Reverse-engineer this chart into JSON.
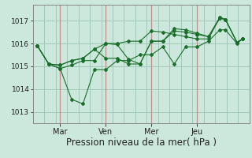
{
  "bg_color": "#cce8dc",
  "grid_color": "#a0c8b8",
  "line_color": "#1a6e2a",
  "marker_color": "#1a6e2a",
  "xlabel": "Pression niveau de la mer( hPa )",
  "xlabel_fontsize": 8.5,
  "ylim": [
    1012.5,
    1017.7
  ],
  "yticks": [
    1013,
    1014,
    1015,
    1016,
    1017
  ],
  "xtick_labels": [
    "Mar",
    "Ven",
    "Mer",
    "Jeu"
  ],
  "xtick_positions": [
    1.0,
    3.0,
    5.0,
    7.0
  ],
  "series": [
    [
      1015.9,
      1015.1,
      1014.9,
      1015.05,
      1015.25,
      1015.25,
      1016.0,
      1015.95,
      1015.3,
      1015.1,
      1016.1,
      1016.1,
      1016.65,
      1016.6,
      1016.45,
      1016.3,
      1017.1,
      1017.05,
      1016.05,
      1016.2
    ],
    [
      1015.9,
      1015.1,
      1014.9,
      1013.55,
      1013.35,
      1014.85,
      1014.85,
      1015.25,
      1015.25,
      1015.5,
      1015.5,
      1015.85,
      1015.1,
      1015.85,
      1015.85,
      1016.1,
      1016.6,
      1016.6,
      1016.0,
      1016.2
    ],
    [
      1015.9,
      1015.1,
      1015.05,
      1015.25,
      1015.35,
      1015.75,
      1016.0,
      1016.0,
      1016.1,
      1016.1,
      1016.55,
      1016.5,
      1016.4,
      1016.3,
      1016.2,
      1016.2,
      1017.15,
      1017.05,
      1016.05,
      1016.2
    ],
    [
      1015.9,
      1015.1,
      1015.05,
      1015.25,
      1015.35,
      1015.75,
      1015.35,
      1015.35,
      1015.1,
      1015.1,
      1016.1,
      1016.1,
      1016.55,
      1016.5,
      1016.4,
      1016.3,
      1017.15,
      1017.05,
      1016.05,
      1016.2
    ]
  ],
  "x_positions": [
    0.0,
    0.5,
    1.0,
    1.5,
    2.0,
    2.5,
    3.0,
    3.5,
    4.0,
    4.5,
    5.0,
    5.5,
    6.0,
    6.5,
    7.0,
    7.5,
    8.0,
    8.25,
    8.75,
    9.0
  ],
  "vline_color": "#c09090",
  "xlim": [
    -0.2,
    9.3
  ]
}
